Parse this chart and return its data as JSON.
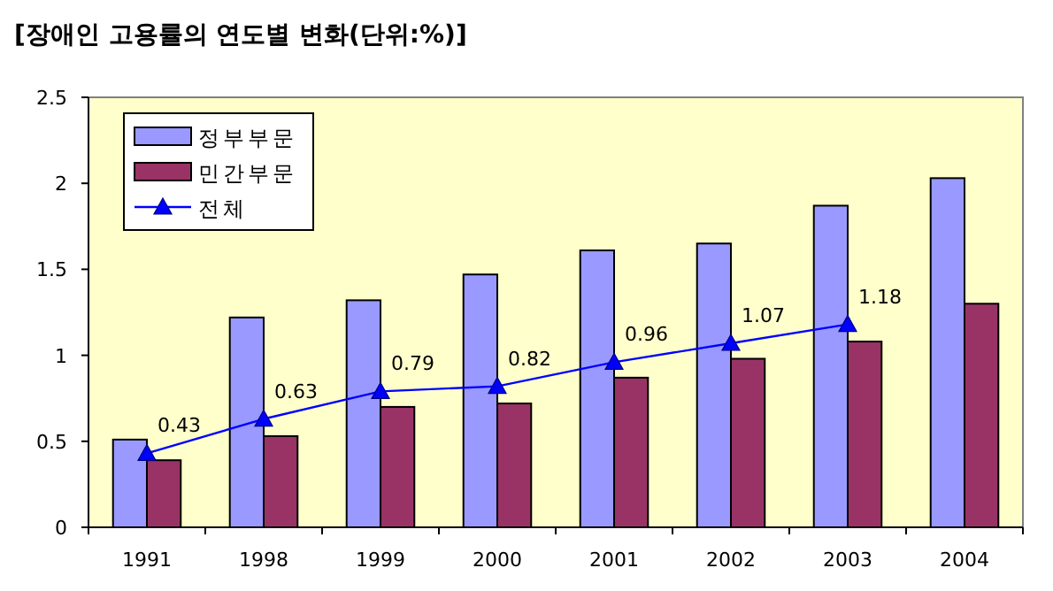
{
  "chart_data": {
    "type": "bar",
    "title": "[장애인 고용률의 연도별 변화(단위:%)]",
    "categories": [
      "1991",
      "1998",
      "1999",
      "2000",
      "2001",
      "2002",
      "2003",
      "2004"
    ],
    "series": [
      {
        "name": "정부부문",
        "color": "#9999ff",
        "values": [
          0.51,
          1.22,
          1.32,
          1.47,
          1.61,
          1.65,
          1.87,
          2.03
        ]
      },
      {
        "name": "민간부문",
        "color": "#993366",
        "values": [
          0.39,
          0.53,
          0.7,
          0.72,
          0.87,
          0.98,
          1.08,
          1.3
        ]
      },
      {
        "name": "전체",
        "type": "line",
        "color": "#0000ff",
        "marker": "triangle",
        "values": [
          0.43,
          0.63,
          0.79,
          0.82,
          0.96,
          1.07,
          1.18,
          null
        ],
        "value_labels": [
          "0.43",
          "0.63",
          "0.79",
          "0.82",
          "0.96",
          "1.07",
          "1.18",
          null
        ]
      }
    ],
    "ylim": [
      0,
      2.5
    ],
    "yticks": [
      0,
      0.5,
      1,
      1.5,
      2,
      2.5
    ],
    "grid": false,
    "legend": "top left"
  }
}
